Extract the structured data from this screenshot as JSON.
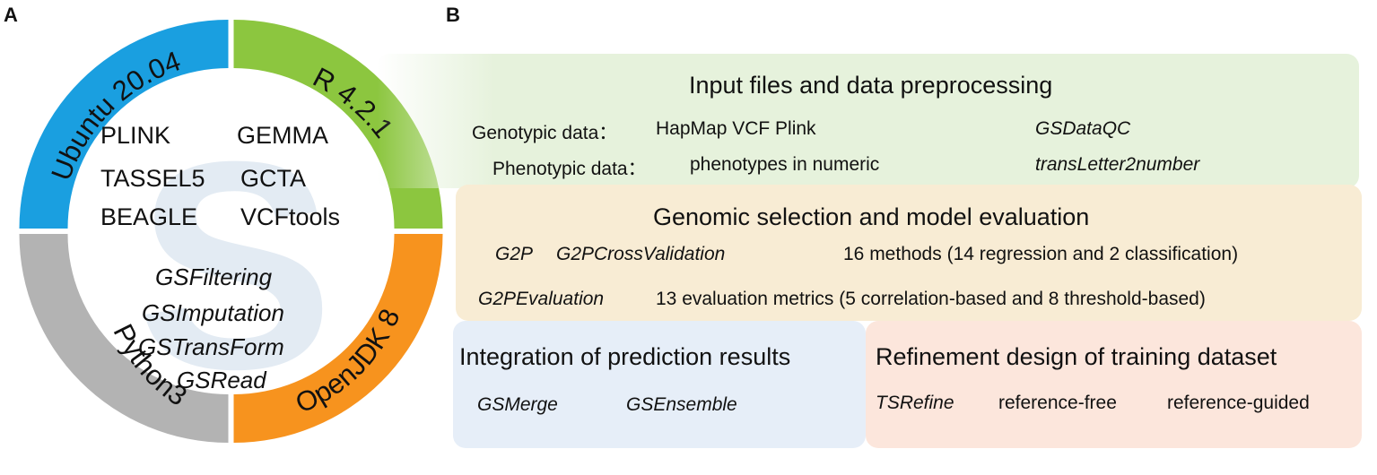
{
  "panels": {
    "a": "A",
    "b": "B"
  },
  "ring": {
    "segments": [
      {
        "label": "Ubuntu 20.04",
        "color": "#1a9fe0"
      },
      {
        "label": "R 4.2.1",
        "color": "#8cc63f"
      },
      {
        "label": "OpenJDK 8",
        "color": "#f7931e"
      },
      {
        "label": "Python3",
        "color": "#b3b3b3"
      }
    ],
    "watermark": "S",
    "tools": {
      "plink": "PLINK",
      "gemma": "GEMMA",
      "tassel": "TASSEL5",
      "gcta": "GCTA",
      "beagle": "BEAGLE",
      "vcftools": "VCFtools"
    },
    "functions": [
      "GSFiltering",
      "GSImputation",
      "GSTransForm",
      "GSRead"
    ]
  },
  "input_box": {
    "title": "Input files and data preprocessing",
    "genotypic_label": "Genotypic data：",
    "genotypic_formats": "HapMap VCF Plink",
    "genotypic_fn": "GSDataQC",
    "phenotypic_label": "Phenotypic data：",
    "phenotypic_desc": "phenotypes in numeric",
    "phenotypic_fn": "transLetter2number"
  },
  "gs_box": {
    "title": "Genomic selection and model evaluation",
    "fn_g2p": "G2P",
    "fn_cv": "G2PCrossValidation",
    "methods": "16 methods (14 regression and 2 classification)",
    "fn_eval": "G2PEvaluation",
    "metrics": "13 evaluation metrics (5 correlation-based and 8 threshold-based)"
  },
  "integration_box": {
    "title": "Integration of prediction results",
    "fn_merge": "GSMerge",
    "fn_ensemble": "GSEnsemble"
  },
  "refine_box": {
    "title": "Refinement design of training dataset",
    "fn_refine": "TSRefine",
    "free": "reference-free",
    "guided": "reference-guided"
  }
}
